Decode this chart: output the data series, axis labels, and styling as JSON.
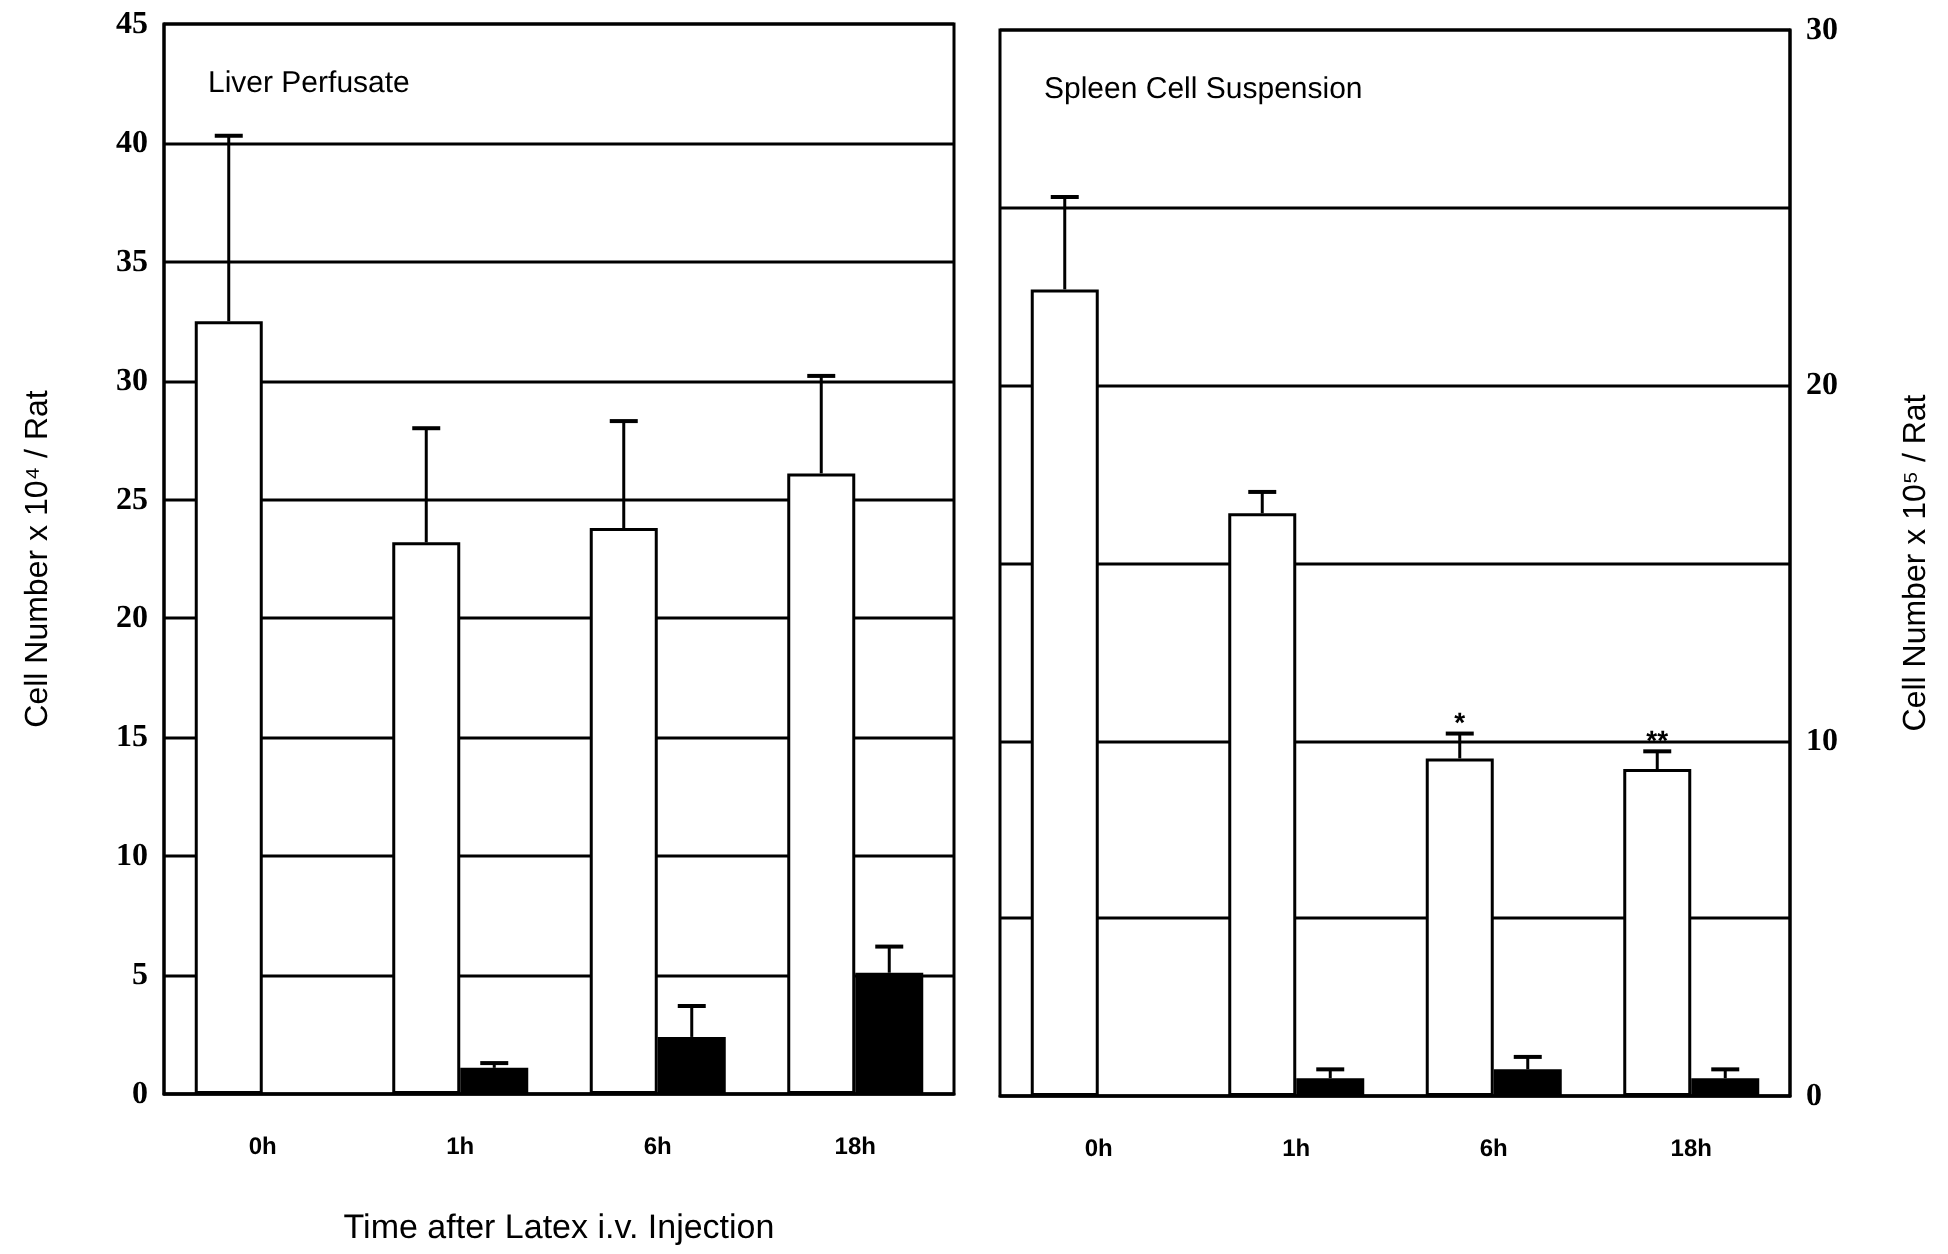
{
  "chart_data": [
    {
      "type": "bar",
      "title": "Liver Perfusate",
      "xlabel": "Time after Latex i.v. Injection",
      "ylabel": "Cell Number x 10⁴ / Rat",
      "categories": [
        "0h",
        "1h",
        "6h",
        "18h"
      ],
      "series": [
        {
          "color": "#ffffff",
          "values": [
            32.5,
            23.2,
            23.8,
            26.1
          ],
          "errors": [
            [
              32.5,
              40.3
            ],
            [
              23.2,
              28.0
            ],
            [
              23.8,
              28.3
            ],
            [
              26.1,
              30.2
            ]
          ]
        },
        {
          "color": "#000000",
          "values": [
            null,
            1.1,
            2.4,
            5.1
          ],
          "errors": [
            null,
            [
              1.1,
              1.3
            ],
            [
              2.4,
              3.7
            ],
            [
              5.1,
              6.2
            ]
          ]
        }
      ],
      "ylim": [
        0,
        45
      ],
      "yticks": [
        0,
        5,
        10,
        15,
        20,
        25,
        30,
        35,
        40,
        45
      ],
      "grid": "y"
    },
    {
      "type": "bar",
      "title": "Spleen Cell Suspension",
      "ylabel": "Cell Number x 10⁵ / Rat",
      "categories": [
        "0h",
        "1h",
        "6h",
        "18h"
      ],
      "series": [
        {
          "color": "#ffffff",
          "values": [
            22.7,
            16.4,
            9.5,
            9.2
          ],
          "errors": [
            [
              22.7,
              25.3
            ],
            [
              16.4,
              17.0
            ],
            [
              9.5,
              10.2
            ],
            [
              9.2,
              9.7
            ]
          ]
        },
        {
          "color": "#000000",
          "values": [
            null,
            0.5,
            0.75,
            0.5
          ],
          "errors": [
            null,
            [
              0.5,
              0.75
            ],
            [
              0.75,
              1.1
            ],
            [
              0.5,
              0.75
            ]
          ]
        }
      ],
      "ylim": [
        0,
        30
      ],
      "yticks": [
        0,
        {
          "value": 5,
          "label": null
        },
        10,
        {
          "value": 15,
          "label": null
        },
        20,
        {
          "value": 25,
          "label": null
        },
        30
      ],
      "grid": "y",
      "annotations": [
        "*",
        "**"
      ]
    }
  ]
}
